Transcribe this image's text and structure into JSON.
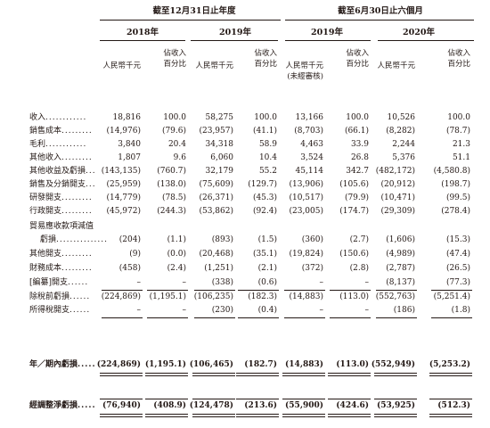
{
  "header": {
    "group_left": "截至12月31日止年度",
    "group_right": "截至6月30日止六個月",
    "years": [
      "2018年",
      "2019年",
      "2019年",
      "2020年"
    ]
  },
  "col_headers": [
    {
      "l1": "人民幣千元",
      "l2": ""
    },
    {
      "l1": "佔收入",
      "l2": "百分比"
    },
    {
      "l1": "人民幣千元",
      "l2": ""
    },
    {
      "l1": "佔收入",
      "l2": "百分比"
    },
    {
      "l1": "人民幣千元",
      "l2": "(未經審核)"
    },
    {
      "l1": "佔收入",
      "l2": "百分比"
    },
    {
      "l1": "人民幣千元",
      "l2": ""
    },
    {
      "l1": "佔收入",
      "l2": "百分比"
    }
  ],
  "rows": [
    {
      "label": "收入",
      "dots": "............",
      "values": [
        "18,816",
        "100.0",
        "58,275",
        "100.0",
        "13,166",
        "100.0",
        "10,526",
        "100.0"
      ]
    },
    {
      "label": "銷售成本",
      "dots": ".........",
      "values": [
        "(14,976)",
        "(79.6)",
        "(23,957)",
        "(41.1)",
        "(8,703)",
        "(66.1)",
        "(8,282)",
        "(78.7)"
      ]
    },
    {
      "label": "毛利",
      "dots": "............",
      "values": [
        "3,840",
        "20.4",
        "34,318",
        "58.9",
        "4,463",
        "33.9",
        "2,244",
        "21.3"
      ]
    },
    {
      "label": "其他收入",
      "dots": ".........",
      "values": [
        "1,807",
        "9.6",
        "6,060",
        "10.4",
        "3,524",
        "26.8",
        "5,376",
        "51.1"
      ]
    },
    {
      "label": "其他收益及虧損",
      "dots": "...",
      "values": [
        "(143,135)",
        "(760.7)",
        "32,179",
        "55.2",
        "45,114",
        "342.7",
        "(482,172)",
        "(4,580.8)"
      ]
    },
    {
      "label": "銷售及分銷開支",
      "dots": "...",
      "values": [
        "(25,959)",
        "(138.0)",
        "(75,609)",
        "(129.7)",
        "(13,906)",
        "(105.6)",
        "(20,912)",
        "(198.7)"
      ]
    },
    {
      "label": "研發開支",
      "dots": ".........",
      "values": [
        "(14,779)",
        "(78.5)",
        "(26,371)",
        "(45.3)",
        "(10,517)",
        "(79.9)",
        "(10,471)",
        "(99.5)"
      ]
    },
    {
      "label": "行政開支",
      "dots": ".........",
      "values": [
        "(45,972)",
        "(244.3)",
        "(53,862)",
        "(92.4)",
        "(23,005)",
        "(174.7)",
        "(29,309)",
        "(278.4)"
      ]
    },
    {
      "label": "貿易應收款項減值",
      "dots": "",
      "values": [
        "",
        "",
        "",
        "",
        "",
        "",
        "",
        ""
      ]
    },
    {
      "label": "虧損",
      "dots": "...............",
      "values": [
        "(204)",
        "(1.1)",
        "(893)",
        "(1.5)",
        "(360)",
        "(2.7)",
        "(1,606)",
        "(15.3)"
      ],
      "indent": true
    },
    {
      "label": "其他開支",
      "dots": ".........",
      "values": [
        "(9)",
        "(0.0)",
        "(20,468)",
        "(35.1)",
        "(19,824)",
        "(150.6)",
        "(4,989)",
        "(47.4)"
      ]
    },
    {
      "label": "財務成本",
      "dots": ".........",
      "values": [
        "(458)",
        "(2.4)",
        "(1,251)",
        "(2.1)",
        "(372)",
        "(2.8)",
        "(2,787)",
        "(26.5)"
      ]
    },
    {
      "label": "[編纂]開支",
      "dots": "......",
      "values": [
        "–",
        "–",
        "(338)",
        "(0.6)",
        "–",
        "–",
        "(8,137)",
        "(77.3)"
      ]
    },
    {
      "label": "除稅前虧損",
      "dots": "......",
      "values": [
        "(224,869)",
        "(1,195.1)",
        "(106,235)",
        "(182.3)",
        "(14,883)",
        "(113.0)",
        "(552,763)",
        "(5,251.4)"
      ]
    },
    {
      "label": "所得稅開支",
      "dots": "......",
      "values": [
        "–",
        "–",
        "(230)",
        "(0.4)",
        "–",
        "–",
        "(186)",
        "(1.8)"
      ]
    }
  ],
  "total_row": {
    "label": "年／期內虧損",
    "dots": ".....",
    "values": [
      "(224,869)",
      "(1,195.1)",
      "(106,465)",
      "(182.7)",
      "(14,883)",
      "(113.0)",
      "(552,949)",
      "(5,253.2)"
    ]
  },
  "adjusted_row": {
    "label": "經調整淨虧損",
    "dots": ".....",
    "values": [
      "(76,940)",
      "(408.9)",
      "(124,478)",
      "(213.6)",
      "(55,900)",
      "(424.6)",
      "(53,925)",
      "(512.3)"
    ]
  }
}
